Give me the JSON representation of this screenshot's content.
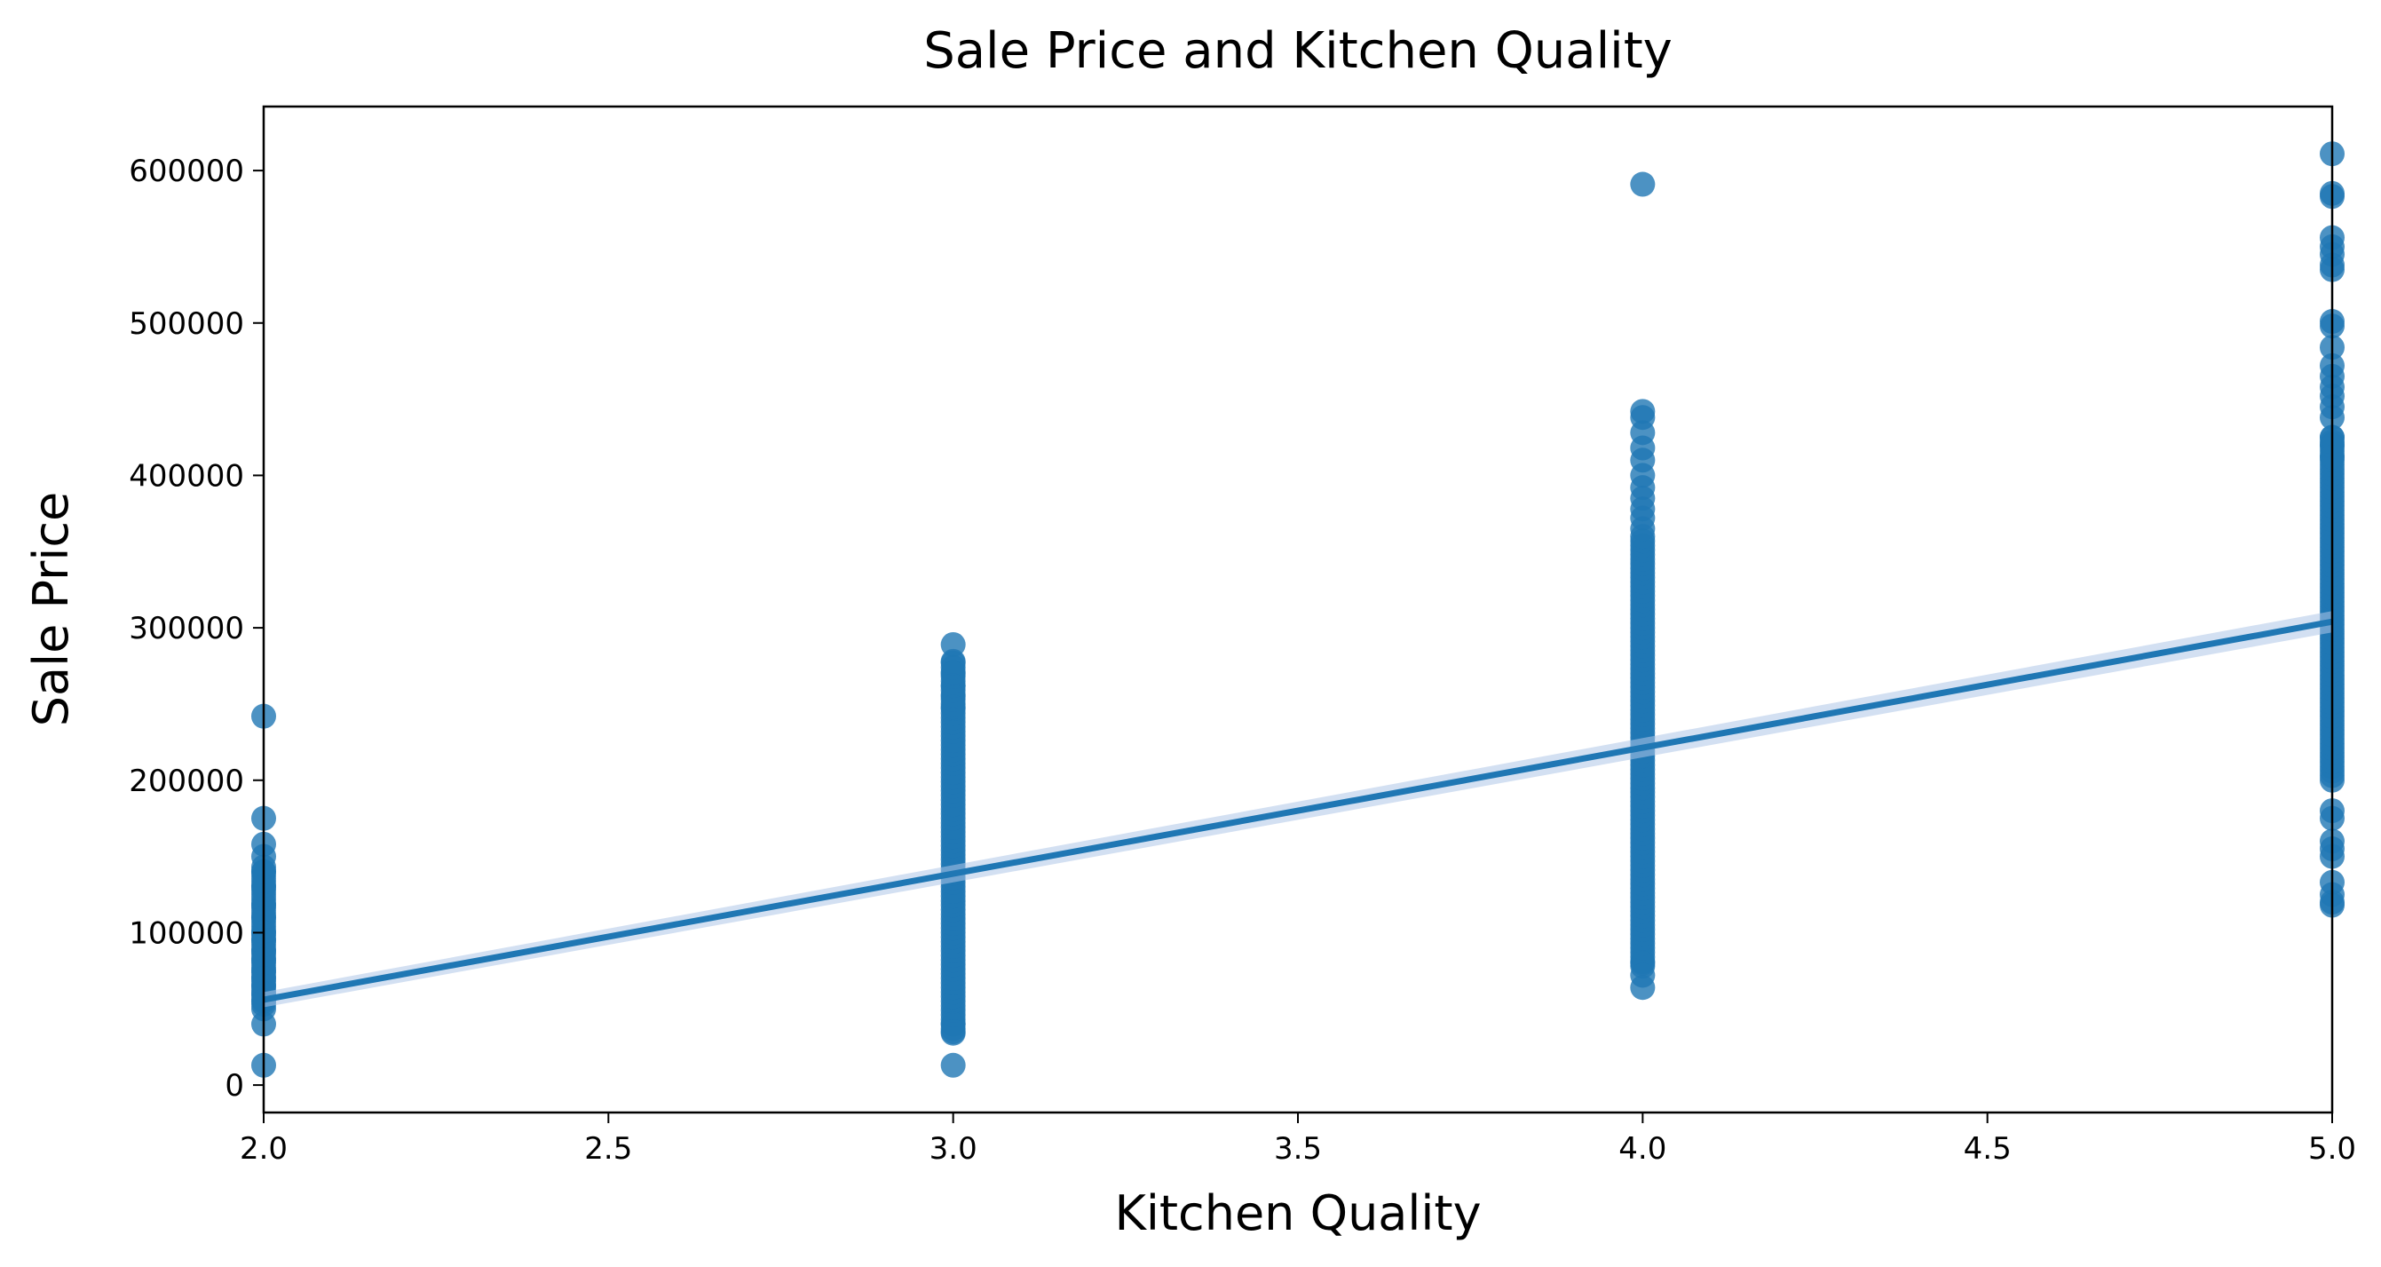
{
  "chart_data": {
    "type": "scatter",
    "title": "Sale Price and Kitchen Quality",
    "xlabel": "Kitchen Quality",
    "ylabel": "Sale Price",
    "xlim": [
      2.0,
      5.0
    ],
    "ylim": [
      -18000,
      642000
    ],
    "xticks": [
      2.0,
      2.5,
      3.0,
      3.5,
      4.0,
      4.5,
      5.0
    ],
    "xtick_labels": [
      "2.0",
      "2.5",
      "3.0",
      "3.5",
      "4.0",
      "4.5",
      "5.0"
    ],
    "yticks": [
      0,
      100000,
      200000,
      300000,
      400000,
      500000,
      600000
    ],
    "ytick_labels": [
      "0",
      "100000",
      "200000",
      "300000",
      "400000",
      "500000",
      "600000"
    ],
    "grid": false,
    "point_color": "#1f77b4",
    "line_color": "#1f77b4",
    "band_color": "#aec7e8",
    "regression": {
      "x": [
        2.0,
        5.0
      ],
      "y": [
        56000,
        304000
      ],
      "ci_low": [
        51000,
        297000
      ],
      "ci_high": [
        61000,
        311000
      ]
    },
    "series": [
      {
        "x_value": 2.0,
        "ranges": [
          [
            50000,
            145000
          ]
        ],
        "points": [
          242000,
          175000,
          158000,
          150000,
          140000,
          130000,
          118000,
          110000,
          100000,
          95000,
          88000,
          82000,
          75000,
          70000,
          65000,
          60000,
          55000,
          40000,
          13000
        ]
      },
      {
        "x_value": 3.0,
        "ranges": [
          [
            34000,
            278000
          ]
        ],
        "points": [
          289000,
          278000,
          270000,
          262000,
          255000,
          248000,
          40000,
          35000,
          13000
        ]
      },
      {
        "x_value": 4.0,
        "ranges": [
          [
            78000,
            360000
          ]
        ],
        "points": [
          591000,
          442000,
          438000,
          428000,
          418000,
          410000,
          400000,
          392000,
          385000,
          378000,
          372000,
          365000,
          80000,
          72000,
          64000
        ]
      },
      {
        "x_value": 5.0,
        "ranges": [
          [
            200000,
            425000
          ]
        ],
        "points": [
          611000,
          585000,
          583000,
          556000,
          550000,
          545000,
          538000,
          535000,
          501000,
          498000,
          484000,
          472000,
          465000,
          458000,
          452000,
          445000,
          438000,
          425000,
          420000,
          412000,
          180000,
          175000,
          160000,
          155000,
          150000,
          133000,
          125000,
          120000,
          118000
        ]
      }
    ]
  }
}
